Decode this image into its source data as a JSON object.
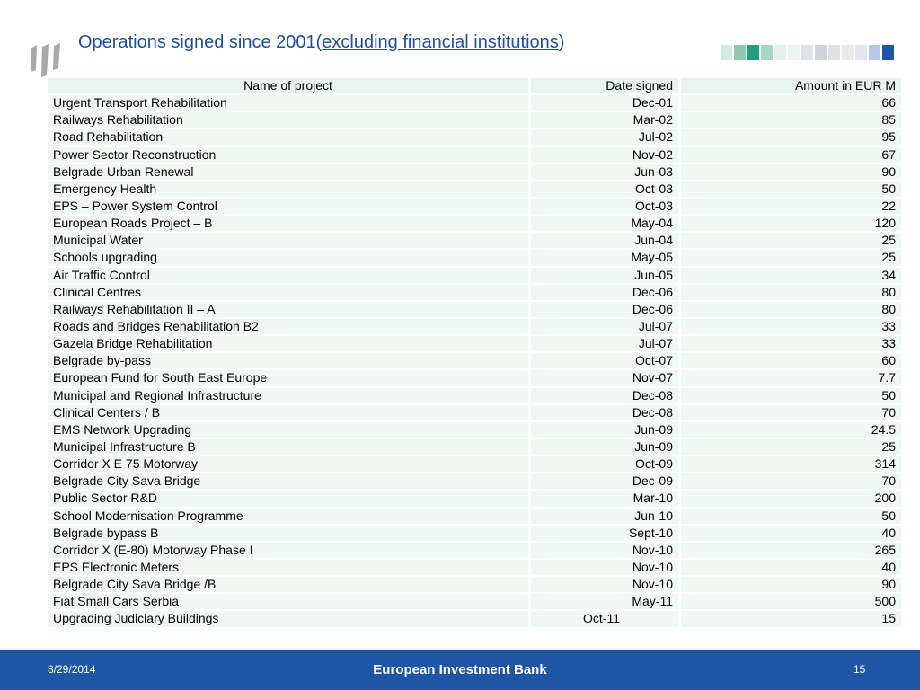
{
  "slide": {
    "title_prefix": "Operations signed since 2001(",
    "title_link": "excluding financial institutions",
    "title_suffix": ")"
  },
  "table": {
    "headers": [
      "Name of project",
      "Date signed",
      "Amount in EUR M"
    ],
    "rows": [
      [
        "Urgent Transport Rehabilitation",
        "Dec-01",
        "66"
      ],
      [
        "Railways Rehabilitation",
        "Mar-02",
        "85"
      ],
      [
        "Road Rehabilitation",
        "Jul-02",
        "95"
      ],
      [
        "Power Sector Reconstruction",
        "Nov-02",
        "67"
      ],
      [
        "Belgrade Urban Renewal",
        "Jun-03",
        "90"
      ],
      [
        "Emergency Health",
        "Oct-03",
        "50"
      ],
      [
        "EPS – Power System Control",
        "Oct-03",
        "22"
      ],
      [
        "European Roads Project – B",
        "May-04",
        "120"
      ],
      [
        "Municipal Water",
        "Jun-04",
        "25"
      ],
      [
        "Schools upgrading",
        "May-05",
        "25"
      ],
      [
        "Air Traffic Control",
        "Jun-05",
        "34"
      ],
      [
        "Clinical Centres",
        "Dec-06",
        "80"
      ],
      [
        "Railways Rehabilitation II – A",
        "Dec-06",
        "80"
      ],
      [
        "Roads and Bridges Rehabilitation B2",
        "Jul-07",
        "33"
      ],
      [
        "Gazela Bridge Rehabilitation",
        "Jul-07",
        "33"
      ],
      [
        "Belgrade by-pass",
        "Oct-07",
        "60"
      ],
      [
        "European Fund for South East Europe",
        "Nov-07",
        "7.7"
      ],
      [
        "Municipal and Regional Infrastructure",
        "Dec-08",
        "50"
      ],
      [
        "Clinical Centers / B",
        "Dec-08",
        "70"
      ],
      [
        "EMS Network Upgrading",
        "Jun-09",
        "24.5"
      ],
      [
        "Municipal Infrastructure B",
        "Jun-09",
        "25"
      ],
      [
        "Corridor X E 75 Motorway",
        "Oct-09",
        "314"
      ],
      [
        "Belgrade City Sava Bridge",
        "Dec-09",
        "70"
      ],
      [
        "Public Sector R&D",
        "Mar-10",
        "200"
      ],
      [
        "School Modernisation Programme",
        "Jun-10",
        "50"
      ],
      [
        "Belgrade bypass B",
        "Sept-10",
        "40"
      ],
      [
        "Corridor X (E-80) Motorway Phase I",
        "Nov-10",
        "265"
      ],
      [
        "EPS Electronic Meters",
        "Nov-10",
        "40"
      ],
      [
        "Belgrade City Sava Bridge /B",
        "Nov-10",
        "90"
      ],
      [
        "Fiat Small Cars Serbia",
        "May-11",
        "500"
      ],
      [
        "Upgrading Judiciary Buildings",
        "Oct-11",
        "15"
      ]
    ]
  },
  "footer": {
    "date": "8/29/2014",
    "organization": "European Investment Bank",
    "page_number": "15"
  },
  "colors": {
    "title": "#1f4e9c",
    "footer_bg": "#1f55a5",
    "row_bg": "#eff8f2",
    "logo_gray": "#a9a9a9"
  },
  "icons": {
    "logo": "eib-logo-icon",
    "decoration": "decorative-squares-icon"
  }
}
